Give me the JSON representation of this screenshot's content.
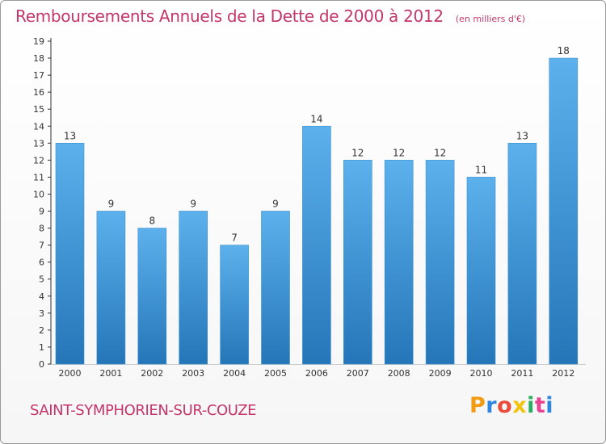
{
  "title": "Remboursements Annuels de la Dette de 2000 à 2012",
  "subtitle": "(en milliers d'€)",
  "commune": "SAINT-SYMPHORIEN-SUR-COUZE",
  "brand": {
    "letters": [
      "P",
      "r",
      "o",
      "x",
      "i",
      "t",
      "i"
    ],
    "colors": [
      "#f39c12",
      "#2e86de",
      "#e74c3c",
      "#f1c40f",
      "#27ae60",
      "#e84393",
      "#2e86de"
    ]
  },
  "colors": {
    "title": "#c4366a",
    "bar_top": "#5cb1ec",
    "bar_bottom": "#2576b8",
    "axis": "#333333"
  },
  "chart_data": {
    "type": "bar",
    "title": "Remboursements Annuels de la Dette de 2000 à 2012",
    "subtitle": "(en milliers d'€)",
    "categories": [
      "2000",
      "2001",
      "2002",
      "2003",
      "2004",
      "2005",
      "2006",
      "2007",
      "2008",
      "2009",
      "2010",
      "2011",
      "2012"
    ],
    "values": [
      13,
      9,
      8,
      9,
      7,
      9,
      14,
      12,
      12,
      12,
      11,
      13,
      18
    ],
    "ylim": [
      0,
      19
    ],
    "yticks": [
      0,
      1,
      2,
      3,
      4,
      5,
      6,
      7,
      8,
      9,
      10,
      11,
      12,
      13,
      14,
      15,
      16,
      17,
      18,
      19
    ],
    "grid": false,
    "legend": "none"
  }
}
